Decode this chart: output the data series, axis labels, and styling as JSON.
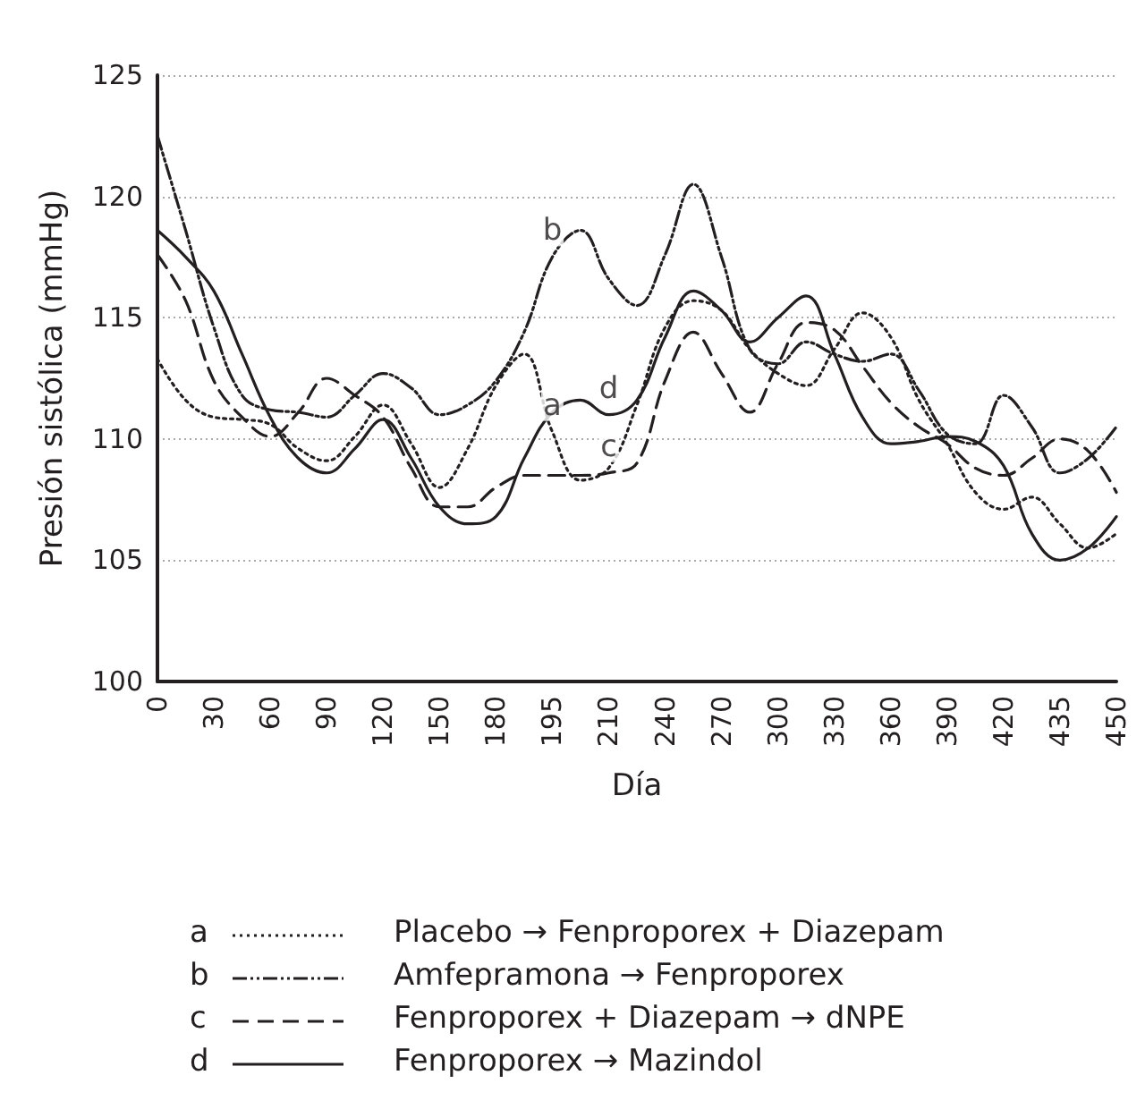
{
  "chart_data": {
    "type": "line",
    "xlabel": "Día",
    "ylabel": "Presión sistólica (mmHg)",
    "categories": [
      "0",
      null,
      "30",
      null,
      "60",
      null,
      "90",
      null,
      "120",
      null,
      "150",
      null,
      "180",
      null,
      "195",
      null,
      "210",
      null,
      "240",
      null,
      "270",
      null,
      "300",
      null,
      "330",
      null,
      "360",
      null,
      "390",
      null,
      "420",
      null,
      "435",
      null,
      "450"
    ],
    "series": [
      {
        "name": "Placebo → Fenproporex + Diazepam",
        "color": "#231f20",
        "line_style": "dotted",
        "values": [
          113.3,
          111.6,
          110.9,
          110.8,
          110.6,
          109.6,
          109.1,
          110.1,
          111.4,
          109.8,
          108.0,
          109.6,
          112.2,
          113.5,
          110.3,
          108.3,
          108.8,
          111.4,
          114.6,
          115.7,
          115.3,
          113.7,
          112.7,
          112.2,
          113.7,
          115.2,
          114.2,
          111.6,
          109.8,
          107.8,
          107.1,
          107.6,
          106.5,
          105.5,
          106.1
        ]
      },
      {
        "name": "Amfepramona → Fenproporex",
        "color": "#231f20",
        "line_style": "dashdot",
        "values": [
          122.5,
          118.6,
          114.6,
          111.8,
          111.2,
          111.1,
          110.9,
          111.8,
          112.7,
          112.1,
          111.0,
          111.4,
          112.4,
          114.4,
          117.5,
          118.6,
          116.6,
          115.5,
          117.6,
          120.5,
          117.5,
          113.7,
          113.1,
          114.0,
          113.5,
          113.2,
          113.5,
          112.0,
          110.2,
          109.8,
          111.8,
          110.5,
          108.6,
          109.2,
          110.5
        ]
      },
      {
        "name": "Fenproporex + Diazepam → dNPE",
        "color": "#231f20",
        "line_style": "dashed",
        "values": [
          117.6,
          115.7,
          112.4,
          110.9,
          110.1,
          111.1,
          112.5,
          111.8,
          110.9,
          108.8,
          107.2,
          107.2,
          108.0,
          108.5,
          108.5,
          108.5,
          108.6,
          109.0,
          112.4,
          114.4,
          112.7,
          111.1,
          113.1,
          114.8,
          114.5,
          113.0,
          111.5,
          110.5,
          109.8,
          108.8,
          108.5,
          109.2,
          110.0,
          109.5,
          107.8
        ]
      },
      {
        "name": "Fenproporex → Mazindol",
        "color": "#231f20",
        "line_style": "solid",
        "values": [
          118.6,
          117.5,
          116.1,
          113.5,
          110.9,
          109.2,
          108.6,
          109.6,
          110.8,
          109.2,
          107.2,
          106.5,
          106.8,
          109.2,
          111.1,
          111.6,
          111.0,
          111.6,
          114.2,
          116.1,
          115.3,
          114.0,
          115.0,
          115.9,
          113.5,
          110.9,
          109.8,
          109.9,
          110.1,
          109.9,
          108.9,
          106.1,
          105.0,
          105.5,
          106.8
        ]
      }
    ],
    "annotations": [
      {
        "text": "a",
        "x": "195",
        "y": 110.3
      },
      {
        "text": "b",
        "x": "195",
        "y": 117.5
      },
      {
        "text": "c",
        "x": "210",
        "y": 108.6
      },
      {
        "text": "d",
        "x": "210",
        "y": 111.0
      }
    ],
    "ylim": [
      100,
      125
    ],
    "yticks": [
      100,
      105,
      110,
      115,
      120,
      125
    ],
    "grid": "y",
    "legend": "bottom",
    "marker": "none"
  }
}
